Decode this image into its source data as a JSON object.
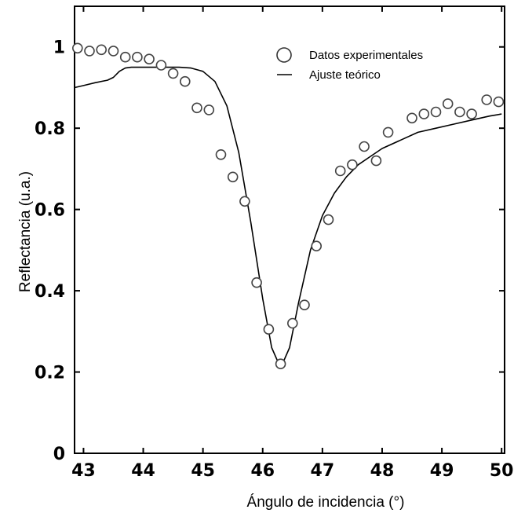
{
  "chart_data": {
    "type": "scatter",
    "xlabel": "Ángulo de incidencia (°)",
    "ylabel": "Reflectancia (u.a.)",
    "xlim": [
      42.85,
      50.05
    ],
    "ylim": [
      0,
      1.1
    ],
    "x_ticks": [
      "43",
      "44",
      "45",
      "46",
      "47",
      "48",
      "49",
      "50"
    ],
    "y_ticks": [
      "0",
      "0.2",
      "0.4",
      "0.6",
      "0.8",
      "1"
    ],
    "grid": false,
    "legend_position": "top-right",
    "series": [
      {
        "name": "Datos experimentales",
        "kind": "markers",
        "marker": "open-circle",
        "x": [
          42.9,
          43.1,
          43.3,
          43.5,
          43.7,
          43.9,
          44.1,
          44.3,
          44.5,
          44.7,
          44.9,
          45.1,
          45.3,
          45.5,
          45.7,
          45.9,
          46.1,
          46.3,
          46.5,
          46.7,
          46.9,
          47.1,
          47.3,
          47.5,
          47.7,
          47.9,
          48.1,
          48.5,
          48.7,
          48.9,
          49.1,
          49.3,
          49.5,
          49.75,
          49.95
        ],
        "y": [
          0.997,
          0.99,
          0.993,
          0.99,
          0.975,
          0.975,
          0.97,
          0.955,
          0.935,
          0.915,
          0.85,
          0.845,
          0.735,
          0.68,
          0.62,
          0.42,
          0.305,
          0.22,
          0.32,
          0.365,
          0.51,
          0.575,
          0.695,
          0.71,
          0.755,
          0.72,
          0.79,
          0.825,
          0.835,
          0.84,
          0.86,
          0.84,
          0.835,
          0.87,
          0.865
        ]
      },
      {
        "name": "Ajuste teórico",
        "kind": "line",
        "x": [
          42.85,
          43.0,
          43.2,
          43.4,
          43.5,
          43.6,
          43.7,
          43.8,
          44.0,
          44.2,
          44.4,
          44.6,
          44.8,
          45.0,
          45.2,
          45.4,
          45.6,
          45.8,
          46.0,
          46.15,
          46.3,
          46.45,
          46.6,
          46.8,
          47.0,
          47.2,
          47.4,
          47.6,
          47.8,
          48.0,
          48.3,
          48.6,
          48.9,
          49.2,
          49.5,
          49.8,
          50.0
        ],
        "y": [
          0.9,
          0.905,
          0.912,
          0.918,
          0.925,
          0.94,
          0.948,
          0.95,
          0.95,
          0.95,
          0.95,
          0.95,
          0.948,
          0.94,
          0.915,
          0.855,
          0.74,
          0.57,
          0.38,
          0.26,
          0.21,
          0.26,
          0.37,
          0.5,
          0.585,
          0.64,
          0.68,
          0.71,
          0.73,
          0.75,
          0.77,
          0.79,
          0.8,
          0.81,
          0.82,
          0.83,
          0.835
        ]
      }
    ]
  }
}
